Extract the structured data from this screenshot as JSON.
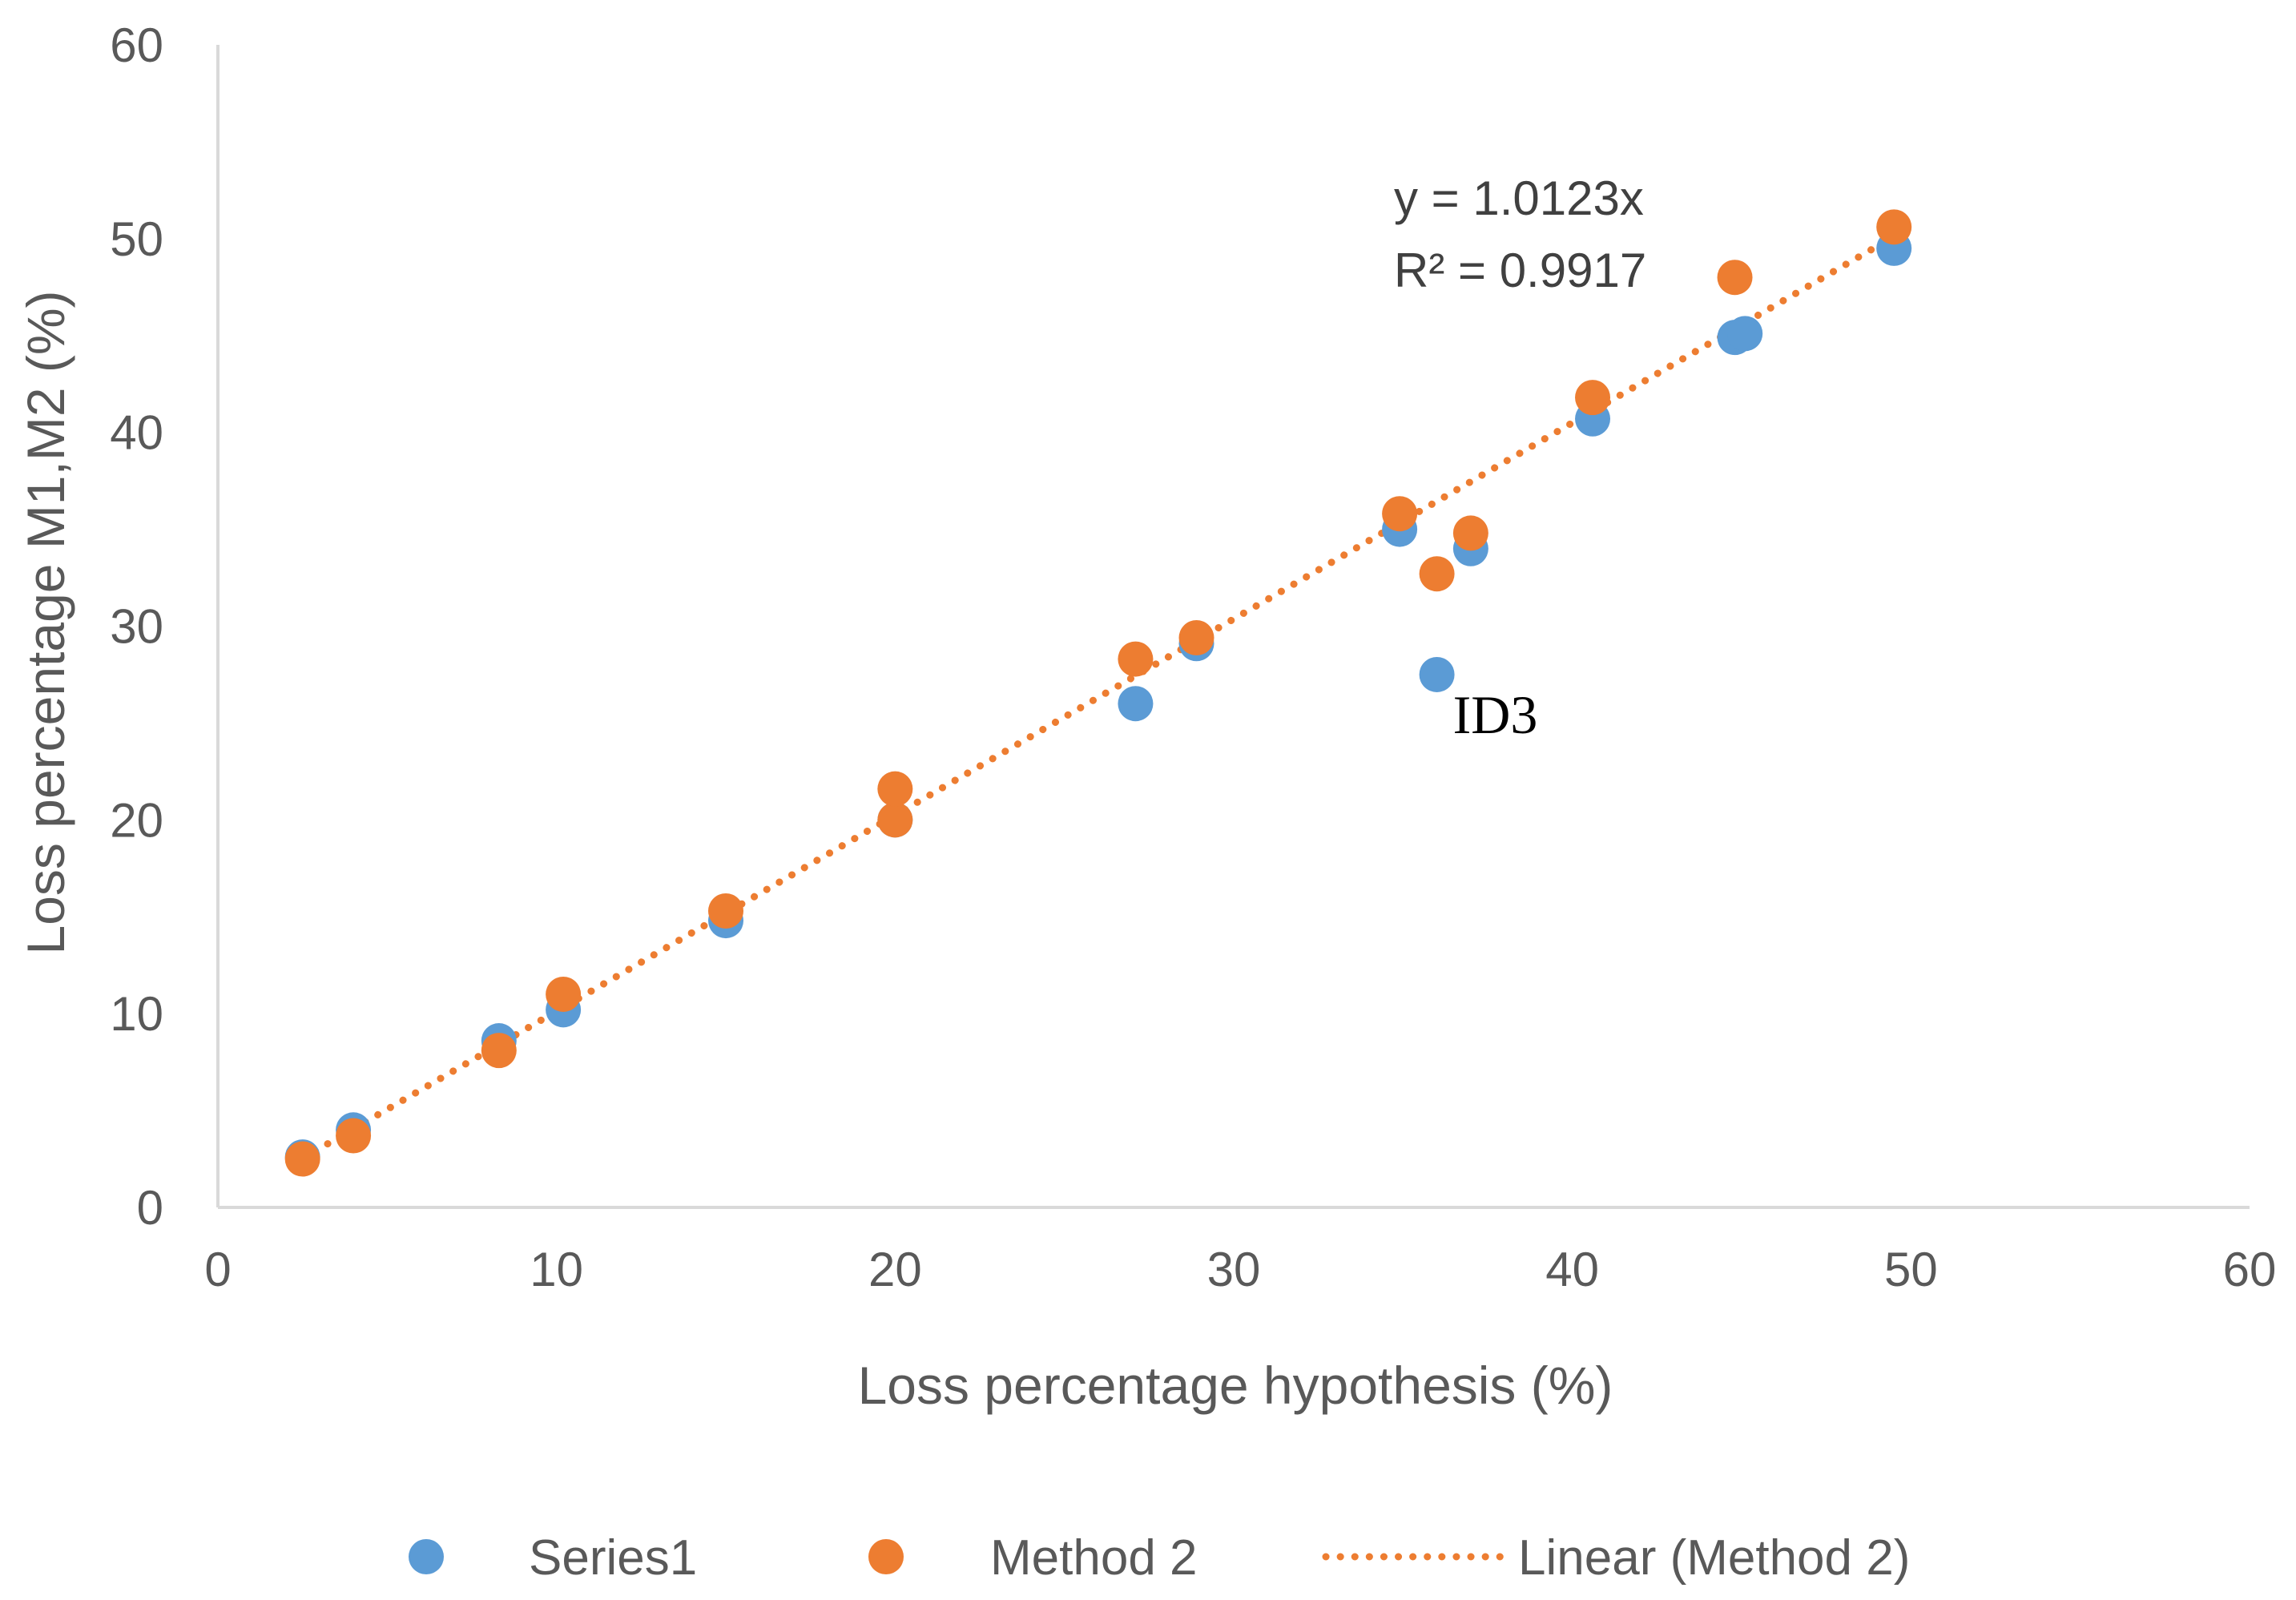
{
  "chart_data": {
    "type": "scatter",
    "xlabel": "Loss percentage hypothesis (%)",
    "ylabel": "Loss percentage M1,M2 (%)",
    "xlim": [
      0,
      60
    ],
    "ylim": [
      0,
      60
    ],
    "x_ticks": [
      "0",
      "10",
      "20",
      "30",
      "40",
      "50",
      "60"
    ],
    "y_ticks": [
      "0",
      "10",
      "20",
      "30",
      "40",
      "50",
      "60"
    ],
    "grid": false,
    "legend_position": "bottom",
    "series": [
      {
        "name": "Series1",
        "color": "#5B9BD5",
        "points": [
          [
            2.5,
            2.6
          ],
          [
            4.0,
            4.0
          ],
          [
            8.3,
            8.6
          ],
          [
            10.2,
            10.2
          ],
          [
            15.0,
            14.8
          ],
          [
            20.0,
            20.0
          ],
          [
            27.1,
            26.0
          ],
          [
            28.9,
            29.1
          ],
          [
            34.9,
            35.0
          ],
          [
            36.0,
            27.5
          ],
          [
            37.0,
            34.0
          ],
          [
            40.6,
            40.7
          ],
          [
            44.8,
            44.9
          ],
          [
            45.1,
            45.1
          ],
          [
            49.5,
            49.5
          ]
        ]
      },
      {
        "name": "Method 2",
        "color": "#ED7D31",
        "points": [
          [
            2.5,
            2.5
          ],
          [
            4.0,
            3.7
          ],
          [
            8.3,
            8.1
          ],
          [
            10.2,
            11.0
          ],
          [
            15.0,
            15.3
          ],
          [
            20.0,
            20.0
          ],
          [
            20.0,
            21.6
          ],
          [
            27.1,
            28.3
          ],
          [
            28.9,
            29.4
          ],
          [
            34.9,
            35.8
          ],
          [
            36.0,
            32.7
          ],
          [
            37.0,
            34.8
          ],
          [
            40.6,
            41.8
          ],
          [
            44.8,
            48.0
          ],
          [
            49.5,
            50.6
          ]
        ]
      }
    ],
    "trendline": {
      "name": "Linear (Method 2)",
      "series": "Method 2",
      "slope": 1.0123,
      "x_range": [
        2.5,
        49.5
      ],
      "style": "dotted",
      "color": "#ED7D31",
      "equation_text": "y = 1.0123x",
      "r2_text": "R² = 0.9917"
    },
    "annotations": [
      {
        "text": "ID3",
        "x": 36.0,
        "y": 27.5
      }
    ]
  }
}
